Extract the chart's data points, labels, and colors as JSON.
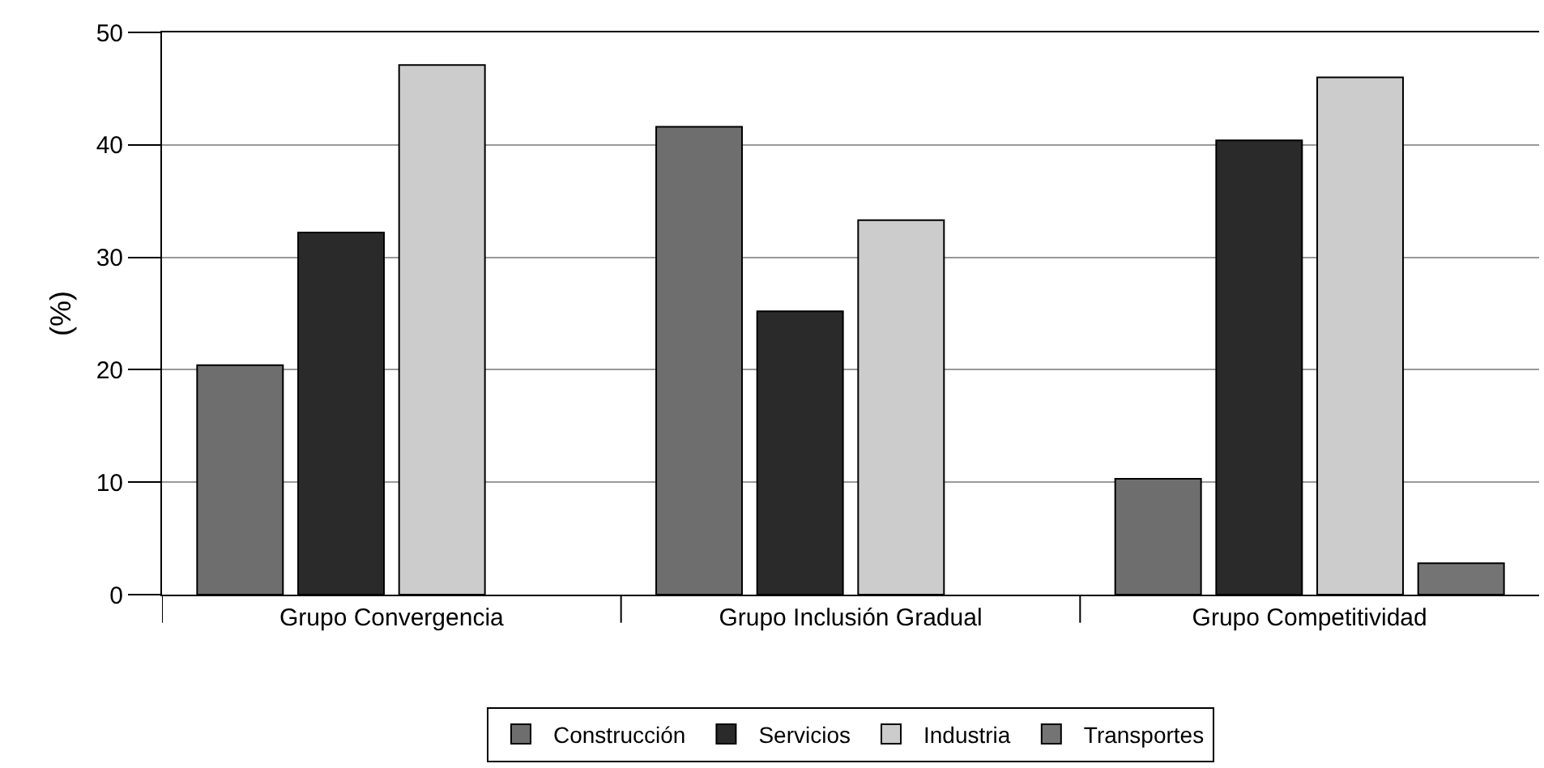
{
  "chart_data": {
    "type": "bar",
    "ylabel": "(%)",
    "categories": [
      "Grupo Convergencia",
      "Grupo Inclusión Gradual",
      "Grupo Competitividad"
    ],
    "series": [
      {
        "name": "Construcción",
        "color": "#6e6e6e",
        "values": [
          20.4,
          41.6,
          10.3
        ]
      },
      {
        "name": "Servicios",
        "color": "#2a2a2a",
        "values": [
          32.2,
          25.2,
          40.4
        ]
      },
      {
        "name": "Industria",
        "color": "#cccccc",
        "values": [
          47.1,
          33.3,
          46.0
        ]
      },
      {
        "name": "Transportes",
        "color": "#747474",
        "values": [
          null,
          null,
          2.8
        ]
      }
    ],
    "ylim": [
      0,
      50
    ],
    "yticks": [
      0,
      10,
      20,
      30,
      40,
      50
    ],
    "grid": "y",
    "legend": "bottom"
  }
}
